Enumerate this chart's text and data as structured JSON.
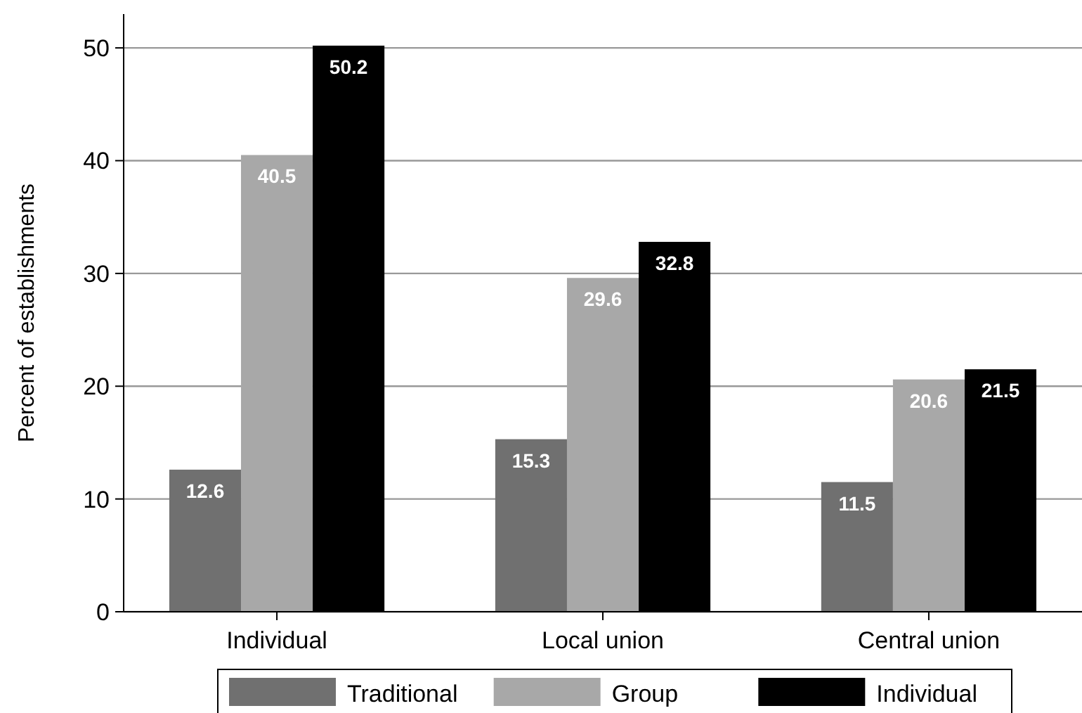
{
  "chart_data": {
    "type": "bar",
    "ylabel": "Percent of establishments",
    "categories": [
      "Individual",
      "Local union",
      "Central union"
    ],
    "series": [
      {
        "name": "Traditional",
        "color": "#707070",
        "values": [
          12.6,
          15.3,
          11.5
        ]
      },
      {
        "name": "Group",
        "color": "#a8a8a8",
        "values": [
          40.5,
          29.6,
          20.6
        ]
      },
      {
        "name": "Individual",
        "color": "#000000",
        "values": [
          50.2,
          32.8,
          21.5
        ]
      }
    ],
    "ylim": [
      0,
      53
    ],
    "yticks": [
      0,
      10,
      20,
      30,
      40,
      50
    ],
    "grid": "y",
    "legend": "bottom",
    "data_labels": true
  }
}
